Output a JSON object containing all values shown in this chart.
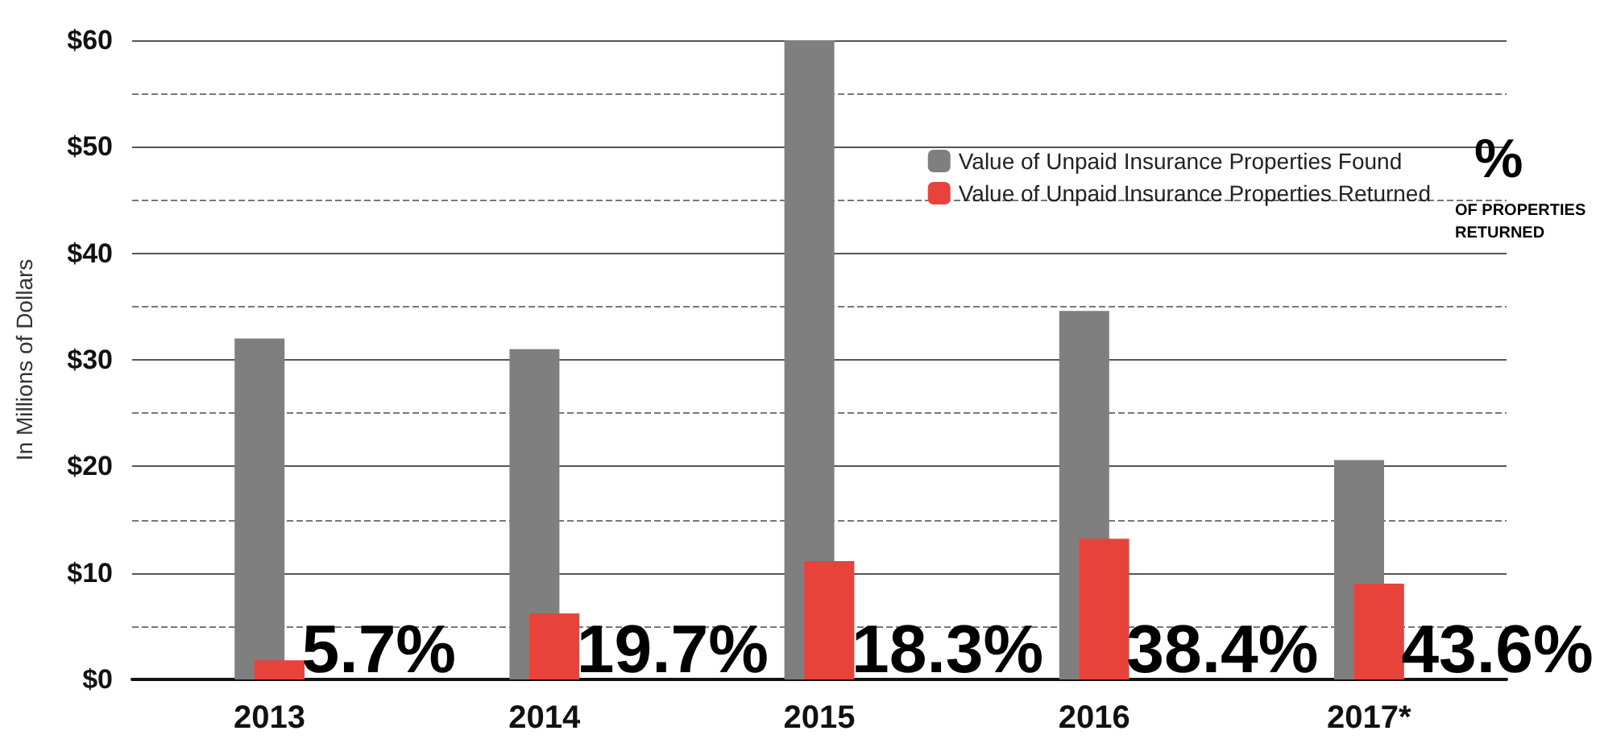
{
  "chart_data": {
    "type": "bar",
    "ylabel": "In Millions of Dollars",
    "categories": [
      "2013",
      "2014",
      "2015",
      "2016",
      "2017*"
    ],
    "series": [
      {
        "name": "Value of Unpaid Insurance Properties Found",
        "color": "#7f7f7f",
        "values": [
          32,
          31,
          60,
          34.6,
          20.6
        ]
      },
      {
        "name": "Value of Unpaid Insurance Properties Returned",
        "color": "#e8433a",
        "values": [
          1.8,
          6.2,
          11.1,
          13.2,
          9.0
        ]
      }
    ],
    "ylim": [
      0,
      60
    ],
    "yticks": [
      {
        "value": 0,
        "label": "$0"
      },
      {
        "value": 5,
        "label": null
      },
      {
        "value": 10,
        "label": "$10"
      },
      {
        "value": 15,
        "label": null
      },
      {
        "value": 20,
        "label": "$20"
      },
      {
        "value": 25,
        "label": null
      },
      {
        "value": 30,
        "label": "$30"
      },
      {
        "value": 35,
        "label": null
      },
      {
        "value": 40,
        "label": "$40"
      },
      {
        "value": 45,
        "label": null
      },
      {
        "value": 50,
        "label": "$50"
      },
      {
        "value": 55,
        "label": null
      },
      {
        "value": 60,
        "label": "$60"
      }
    ],
    "grid": "y",
    "legend": "top right",
    "annotations": [
      {
        "text": "5.7%",
        "x": "2013",
        "y": 0
      },
      {
        "text": "19.7%",
        "x": "2014",
        "y": 0
      },
      {
        "text": "18.3%",
        "x": "2015",
        "y": 0
      },
      {
        "text": "38.4%",
        "x": "2016",
        "y": 0
      },
      {
        "text": "43.6%",
        "x": "2017*",
        "y": 0
      },
      "%",
      "OF PROPERTIES RETURNED"
    ]
  }
}
